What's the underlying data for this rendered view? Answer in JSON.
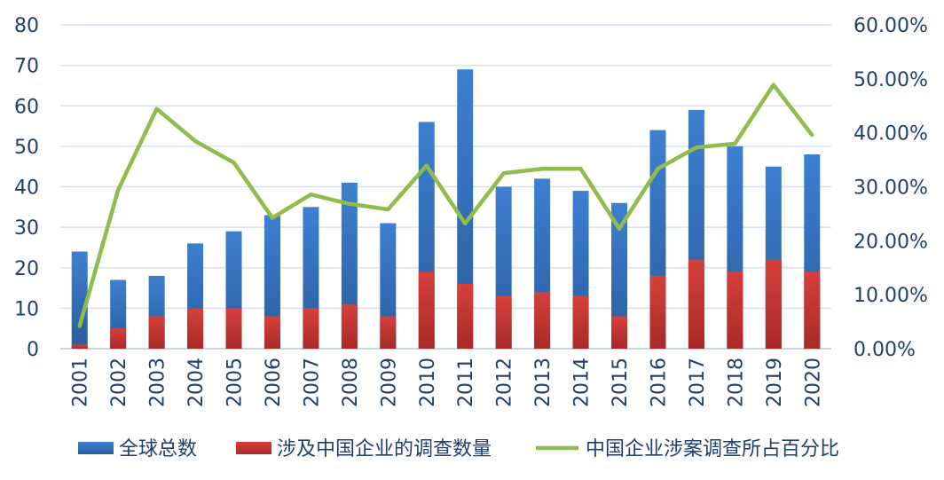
{
  "chart_data": {
    "type": "bar+line",
    "categories": [
      "2001",
      "2002",
      "2003",
      "2004",
      "2005",
      "2006",
      "2007",
      "2008",
      "2009",
      "2010",
      "2011",
      "2012",
      "2013",
      "2014",
      "2015",
      "2016",
      "2017",
      "2018",
      "2019",
      "2020"
    ],
    "series": [
      {
        "name": "全球总数",
        "type": "bar",
        "axis": "left",
        "color": "#3a78c8",
        "values": [
          24,
          17,
          18,
          26,
          29,
          33,
          35,
          41,
          31,
          56,
          69,
          40,
          42,
          39,
          36,
          54,
          59,
          50,
          45,
          48
        ]
      },
      {
        "name": "涉及中国企业的调查数量",
        "type": "bar",
        "axis": "left",
        "color": "#d13b37",
        "values": [
          1,
          5,
          8,
          10,
          10,
          8,
          10,
          11,
          8,
          19,
          16,
          13,
          14,
          13,
          8,
          18,
          22,
          19,
          22,
          19
        ]
      },
      {
        "name": "中国企业涉案调查所占百分比",
        "type": "line",
        "axis": "right",
        "color": "#8fbc4b",
        "values": [
          4.17,
          29.41,
          44.44,
          38.46,
          34.48,
          24.24,
          28.57,
          26.83,
          25.81,
          33.93,
          23.19,
          32.5,
          33.33,
          33.33,
          22.22,
          33.33,
          37.29,
          38.0,
          48.89,
          39.58
        ]
      }
    ],
    "y_left": {
      "range": [
        0,
        80
      ],
      "ticks": [
        "0",
        "10",
        "20",
        "30",
        "40",
        "50",
        "60",
        "70",
        "80"
      ]
    },
    "y_right": {
      "range": [
        0,
        60
      ],
      "ticks": [
        "0.00%",
        "10.00%",
        "20.00%",
        "30.00%",
        "40.00%",
        "50.00%",
        "60.00%"
      ]
    },
    "grid": true,
    "legend": "bottom"
  }
}
